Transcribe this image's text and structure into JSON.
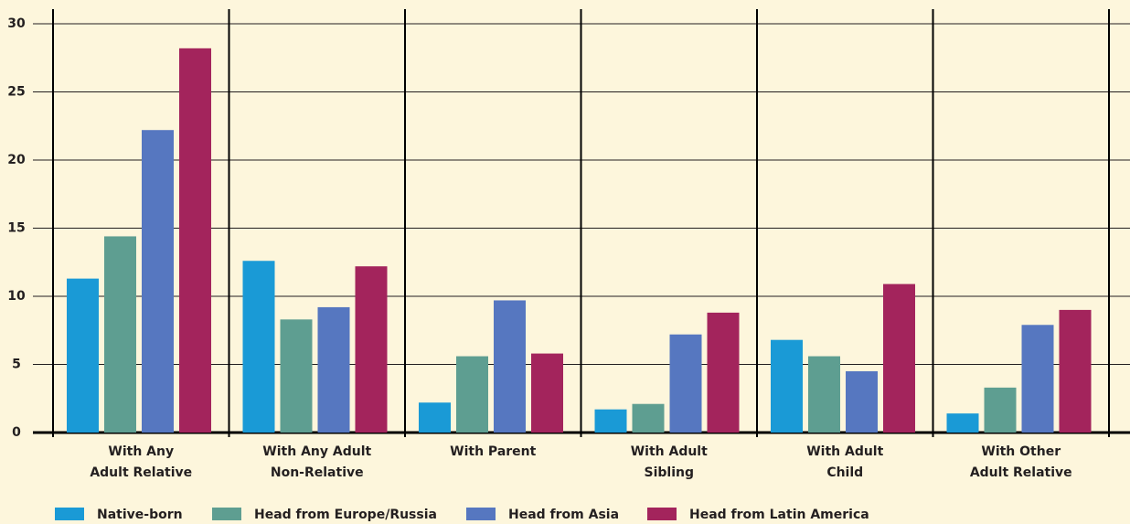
{
  "chart_data": {
    "type": "bar",
    "categories": [
      [
        "With Any",
        "Adult Relative"
      ],
      [
        "With Any Adult",
        "Non-Relative"
      ],
      [
        "With Parent"
      ],
      [
        "With Adult",
        "Sibling"
      ],
      [
        "With Adult",
        "Child"
      ],
      [
        "With Other",
        "Adult Relative"
      ]
    ],
    "series": [
      {
        "name": "Native-born",
        "color": "#1a9ad6",
        "values": [
          11.3,
          12.6,
          2.2,
          1.7,
          6.8,
          1.4
        ]
      },
      {
        "name": "Head from Europe/Russia",
        "color": "#5e9e91",
        "values": [
          14.4,
          8.3,
          5.6,
          2.1,
          5.6,
          3.3
        ]
      },
      {
        "name": "Head from Asia",
        "color": "#5677c0",
        "values": [
          22.2,
          9.2,
          9.7,
          7.2,
          4.5,
          7.9
        ]
      },
      {
        "name": "Head from Latin America",
        "color": "#a3245c",
        "values": [
          28.2,
          12.2,
          5.8,
          8.8,
          10.9,
          9.0
        ]
      }
    ],
    "ylim": [
      0,
      30
    ],
    "yticks": [
      0,
      5,
      10,
      15,
      20,
      25,
      30
    ],
    "grid": true
  }
}
